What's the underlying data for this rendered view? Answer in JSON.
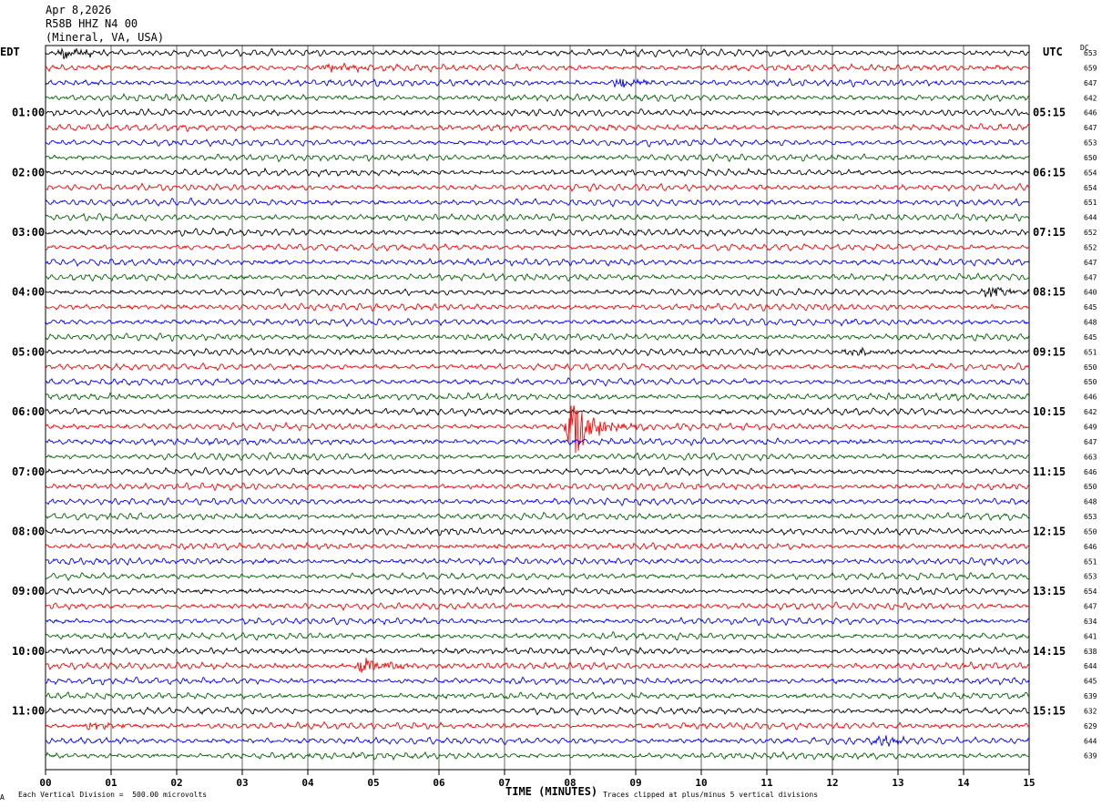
{
  "header": {
    "date": "Apr 8,2026",
    "station": "R58B HHZ N4 00",
    "location": "(Mineral, VA, USA)"
  },
  "left_tz": "EDT",
  "right_tz": "UTC",
  "dc_label": "DC",
  "footer": {
    "scale": "Each Vertical Division =  500.00 microvolts",
    "clip": "Traces clipped at plus/minus 5 vertical divisions",
    "corner": "A"
  },
  "chart_data": {
    "type": "line",
    "xlabel": "TIME (MINUTES)",
    "x_ticks": [
      "00",
      "01",
      "02",
      "03",
      "04",
      "05",
      "06",
      "07",
      "08",
      "09",
      "10",
      "11",
      "12",
      "13",
      "14",
      "15"
    ],
    "xlim": [
      0,
      15
    ],
    "grid": true,
    "left_labels": [
      "01:00",
      "02:00",
      "03:00",
      "04:00",
      "05:00",
      "06:00",
      "07:00",
      "08:00",
      "09:00",
      "10:00",
      "11:00"
    ],
    "right_labels": [
      "05:15",
      "06:15",
      "07:15",
      "08:15",
      "09:15",
      "10:15",
      "11:15",
      "12:15",
      "13:15",
      "14:15",
      "15:15"
    ],
    "trace_colors": [
      "#000000",
      "#ff0000",
      "#0000ff",
      "#006400"
    ],
    "dc_values": [
      653,
      659,
      647,
      642,
      646,
      647,
      653,
      650,
      654,
      654,
      651,
      644,
      652,
      652,
      647,
      647,
      640,
      645,
      648,
      645,
      651,
      650,
      650,
      646,
      642,
      649,
      647,
      663,
      646,
      650,
      648,
      653,
      650,
      646,
      651,
      653,
      654,
      647,
      634,
      641,
      638,
      644,
      645,
      639,
      632,
      629,
      644,
      639
    ],
    "events": [
      {
        "row": 25,
        "minute": 8.05,
        "amplitude": 4.5,
        "label": "earthquake"
      },
      {
        "row": 41,
        "minute": 4.85,
        "amplitude": 1.2
      },
      {
        "row": 0,
        "minute": 0.3,
        "amplitude": 1.0
      },
      {
        "row": 16,
        "minute": 14.4,
        "amplitude": 0.8
      },
      {
        "row": 20,
        "minute": 12.3,
        "amplitude": 0.6
      },
      {
        "row": 46,
        "minute": 12.7,
        "amplitude": 0.8
      },
      {
        "row": 45,
        "minute": 0.65,
        "amplitude": 0.7
      },
      {
        "row": 2,
        "minute": 8.75,
        "amplitude": 0.7
      },
      {
        "row": 1,
        "minute": 4.3,
        "amplitude": 0.6
      }
    ]
  }
}
